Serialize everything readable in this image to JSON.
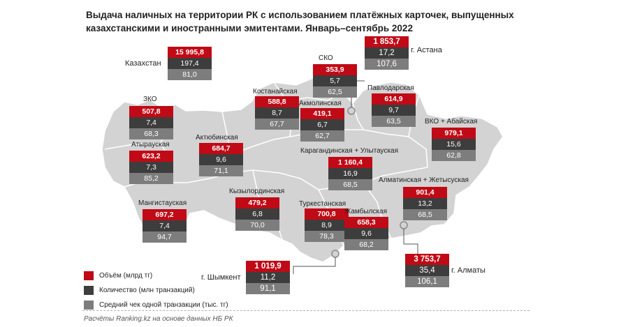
{
  "title": "Выдача наличных на территории РК с использованием платёжных карточек, выпущенных казахстанскими и иностранными эмитентами. Январь–сентябрь 2022",
  "colors": {
    "volume": "#c00a16",
    "count": "#3d3d3d",
    "avg": "#7d7d7d",
    "map": "#d3d3d3",
    "border": "#ffffff"
  },
  "legend": {
    "volume": "Объём (млрд тг)",
    "count": "Количество (млн транзакций)",
    "avg": "Средний чек одной транзакции (тыс. тг)"
  },
  "total": {
    "name": "Казахстан",
    "volume": "15 995,8",
    "count": "197,4",
    "avg": "81,0"
  },
  "regions": [
    {
      "id": "zko",
      "name": "ЗКО",
      "volume": "507,8",
      "count": "7,4",
      "avg": "68,3"
    },
    {
      "id": "atyrau",
      "name": "Атырауская",
      "volume": "623,2",
      "count": "7,3",
      "avg": "85,2"
    },
    {
      "id": "mangistau",
      "name": "Мангистауская",
      "volume": "697,2",
      "count": "7,4",
      "avg": "94,7"
    },
    {
      "id": "aktobe",
      "name": "Актюбинская",
      "volume": "684,7",
      "count": "9,6",
      "avg": "71,1"
    },
    {
      "id": "kostanay",
      "name": "Костанайская",
      "volume": "588,8",
      "count": "8,7",
      "avg": "67,7"
    },
    {
      "id": "sko",
      "name": "СКО",
      "volume": "353,9",
      "count": "5,7",
      "avg": "62,5"
    },
    {
      "id": "akmola",
      "name": "Акмолинская",
      "volume": "419,1",
      "count": "6,7",
      "avg": "62,7"
    },
    {
      "id": "astana",
      "name": "г. Астана",
      "volume": "1 853,7",
      "count": "17,2",
      "avg": "107,6"
    },
    {
      "id": "pavlodar",
      "name": "Павлодарская",
      "volume": "614,9",
      "count": "9,7",
      "avg": "63,5"
    },
    {
      "id": "vko",
      "name": "ВКО + Абайская",
      "volume": "979,1",
      "count": "15,6",
      "avg": "62,8"
    },
    {
      "id": "karaganda",
      "name": "Карагандинская + Улытауская",
      "volume": "1 160,4",
      "count": "16,9",
      "avg": "68,5"
    },
    {
      "id": "kyzylorda",
      "name": "Кызылординская",
      "volume": "479,2",
      "count": "6,8",
      "avg": "70,0"
    },
    {
      "id": "turkestan",
      "name": "Туркестанская",
      "volume": "700,8",
      "count": "8,9",
      "avg": "78,3"
    },
    {
      "id": "zhambyl",
      "name": "Жамбылская",
      "volume": "658,3",
      "count": "9,6",
      "avg": "68,2"
    },
    {
      "id": "almaty_region",
      "name": "Алматинская + Жетысуская",
      "volume": "901,4",
      "count": "13,2",
      "avg": "68,5"
    },
    {
      "id": "almaty",
      "name": "г. Алматы",
      "volume": "3 753,7",
      "count": "35,4",
      "avg": "106,1"
    },
    {
      "id": "shymkent",
      "name": "г. Шымкент",
      "volume": "1 019,9",
      "count": "11,2",
      "avg": "91,1"
    }
  ],
  "source": "Расчёты Ranking.kz на основе данных НБ РК"
}
